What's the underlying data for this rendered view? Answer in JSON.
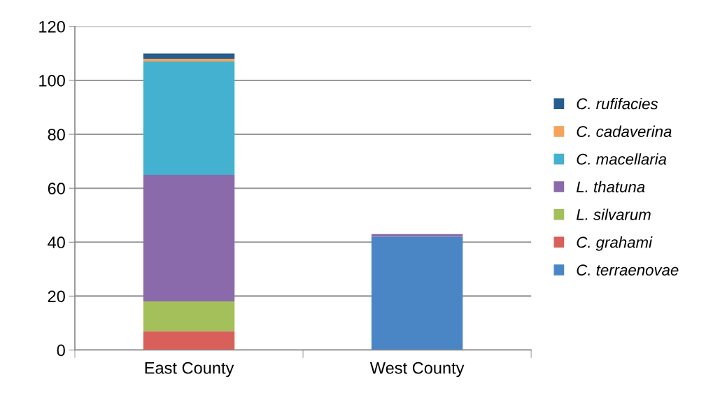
{
  "chart_data": {
    "type": "bar",
    "stacked": true,
    "categories": [
      "East County",
      "West County"
    ],
    "series": [
      {
        "name": "C. terraenovae",
        "color": "#4a86c6",
        "values": [
          0,
          42
        ]
      },
      {
        "name": "C. grahami",
        "color": "#d9605a",
        "values": [
          7,
          0
        ]
      },
      {
        "name": "L. silvarum",
        "color": "#a3c05a",
        "values": [
          11,
          0
        ]
      },
      {
        "name": "L. thatuna",
        "color": "#8a6aaa",
        "values": [
          47,
          1
        ]
      },
      {
        "name": "C. macellaria",
        "color": "#43b1cf",
        "values": [
          42,
          0
        ]
      },
      {
        "name": "C. cadaverina",
        "color": "#f5a35a",
        "values": [
          1,
          0
        ]
      },
      {
        "name": "C. rufifacies",
        "color": "#265c8e",
        "values": [
          2,
          0
        ]
      }
    ],
    "ylim": [
      0,
      120
    ],
    "yticks": [
      0,
      20,
      40,
      60,
      80,
      100,
      120
    ],
    "grid": "y",
    "legend": "right"
  }
}
